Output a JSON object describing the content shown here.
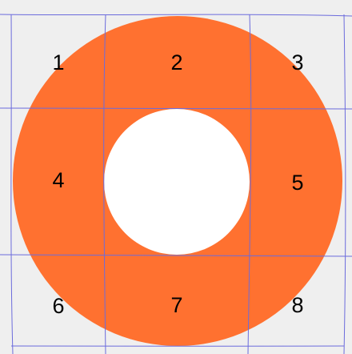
{
  "puzzle": {
    "colors": {
      "background": "#efefef",
      "ring": "#ff7130",
      "hole": "#ffffff",
      "grid_line": "#6b6bdc",
      "number": "#000000"
    },
    "cells": [
      {
        "label": "1"
      },
      {
        "label": "2"
      },
      {
        "label": "3"
      },
      {
        "label": "4"
      },
      {
        "label": "5"
      },
      {
        "label": "6"
      },
      {
        "label": "7"
      },
      {
        "label": "8"
      }
    ]
  }
}
